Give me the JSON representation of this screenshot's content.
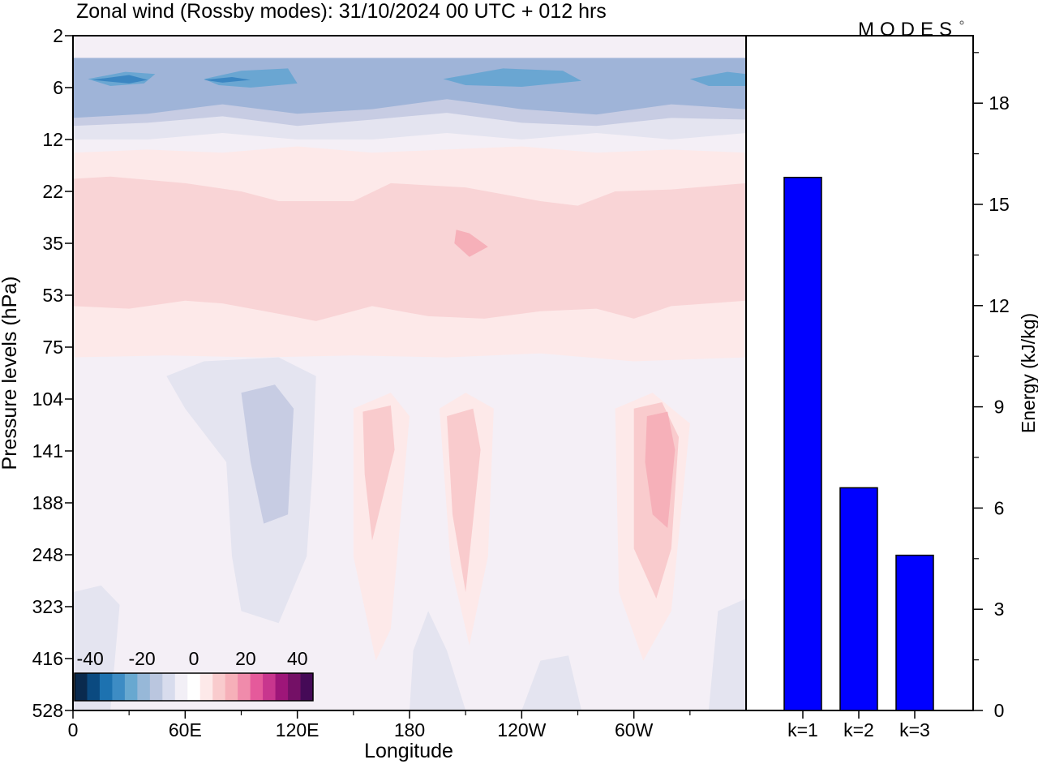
{
  "title": "Zonal wind (Rossby modes):  31/10/2024  00 UTC  + 012 hrs",
  "logo": "MODES",
  "colors": {
    "energy_bar": "#0000ff",
    "bar_stroke": "#000000"
  },
  "chart_data": [
    {
      "type": "heatmap",
      "title": "",
      "xlabel": "Longitude",
      "ylabel": "Pressure levels (hPa)",
      "x_ticks": [
        "0",
        "60E",
        "120E",
        "180",
        "120W",
        "60W"
      ],
      "x_tick_degrees": [
        0,
        60,
        120,
        180,
        240,
        300
      ],
      "xlim": [
        0,
        360
      ],
      "y_levels": [
        "2",
        "6",
        "12",
        "22",
        "35",
        "53",
        "75",
        "104",
        "141",
        "188",
        "248",
        "323",
        "416",
        "528"
      ],
      "colorbar": {
        "labels": [
          "-40",
          "-20",
          "0",
          "20",
          "40"
        ],
        "label_values": [
          -40,
          -20,
          0,
          20,
          40
        ],
        "colors": [
          "#0a2a4e",
          "#0b4a80",
          "#1d72b0",
          "#3d8cc4",
          "#68a8d0",
          "#97b8d8",
          "#bac6df",
          "#d8dced",
          "#f2eff6",
          "#ffffff",
          "#fde9e9",
          "#f9cbcd",
          "#f6b0b9",
          "#f08bab",
          "#e55a9b",
          "#c8368e",
          "#9e1679",
          "#741066",
          "#450a57"
        ]
      },
      "contours": [
        {
          "value": -4,
          "color": "#e4e4f0",
          "lon_p": [
            [
              0,
              6
            ],
            [
              0,
              12
            ],
            [
              40,
              12
            ],
            [
              80,
              11
            ],
            [
              120,
              12
            ],
            [
              160,
              12
            ],
            [
              200,
              11
            ],
            [
              240,
              12
            ],
            [
              280,
              11
            ],
            [
              320,
              12
            ],
            [
              360,
              11
            ],
            [
              360,
              6
            ]
          ]
        },
        {
          "value": -7,
          "color": "#c7cce3",
          "lon_p": [
            [
              0,
              4
            ],
            [
              0,
              10
            ],
            [
              40,
              9.6
            ],
            [
              80,
              8.8
            ],
            [
              120,
              10
            ],
            [
              160,
              9.2
            ],
            [
              200,
              8.4
            ],
            [
              240,
              9.6
            ],
            [
              280,
              10
            ],
            [
              320,
              9
            ],
            [
              360,
              9.2
            ],
            [
              360,
              4
            ]
          ]
        },
        {
          "value": -12,
          "color": "#9fb4d8",
          "lon_p": [
            [
              0,
              3.2
            ],
            [
              0,
              9
            ],
            [
              40,
              8.5
            ],
            [
              80,
              7.5
            ],
            [
              120,
              8.5
            ],
            [
              160,
              8
            ],
            [
              200,
              7
            ],
            [
              240,
              8
            ],
            [
              280,
              8.6
            ],
            [
              320,
              7.5
            ],
            [
              360,
              8
            ],
            [
              360,
              3.2
            ]
          ]
        },
        {
          "value": -20,
          "color": "#6aa6d2",
          "lon_p": [
            [
              8,
              5
            ],
            [
              28,
              4.3
            ],
            [
              44,
              4.5
            ],
            [
              38,
              5.5
            ],
            [
              20,
              5.8
            ]
          ]
        },
        {
          "value": -20,
          "color": "#6aa6d2",
          "lon_p": [
            [
              70,
              5
            ],
            [
              90,
              4.2
            ],
            [
              115,
              4
            ],
            [
              120,
              5.5
            ],
            [
              95,
              6
            ],
            [
              78,
              5.7
            ]
          ]
        },
        {
          "value": -20,
          "color": "#6aa6d2",
          "lon_p": [
            [
              198,
              5
            ],
            [
              230,
              4
            ],
            [
              262,
              4.2
            ],
            [
              272,
              5.2
            ],
            [
              240,
              5.9
            ],
            [
              210,
              5.7
            ]
          ]
        },
        {
          "value": -20,
          "color": "#6aa6d2",
          "lon_p": [
            [
              330,
              5
            ],
            [
              350,
              4.3
            ],
            [
              360,
              4.5
            ],
            [
              360,
              5.8
            ],
            [
              340,
              5.8
            ]
          ]
        },
        {
          "value": -28,
          "color": "#3b86c2",
          "lon_p": [
            [
              10,
              5.1
            ],
            [
              30,
              4.6
            ],
            [
              40,
              5.1
            ],
            [
              30,
              5.5
            ]
          ]
        },
        {
          "value": -28,
          "color": "#3b86c2",
          "lon_p": [
            [
              70,
              5.1
            ],
            [
              85,
              4.8
            ],
            [
              95,
              5.1
            ],
            [
              80,
              5.4
            ]
          ]
        },
        {
          "value": 3,
          "color": "#fde9e9",
          "lon_p": [
            [
              0,
              14
            ],
            [
              40,
              13.5
            ],
            [
              80,
              14
            ],
            [
              120,
              13
            ],
            [
              160,
              14
            ],
            [
              200,
              13.5
            ],
            [
              240,
              13
            ],
            [
              280,
              14
            ],
            [
              320,
              13.5
            ],
            [
              360,
              14
            ],
            [
              360,
              80
            ],
            [
              300,
              82
            ],
            [
              250,
              78
            ],
            [
              200,
              80
            ],
            [
              150,
              79
            ],
            [
              100,
              80
            ],
            [
              50,
              79
            ],
            [
              0,
              80
            ]
          ]
        },
        {
          "value": 6,
          "color": "#f9d4d6",
          "lon_p": [
            [
              0,
              19
            ],
            [
              20,
              18.5
            ],
            [
              60,
              20
            ],
            [
              90,
              22
            ],
            [
              110,
              24
            ],
            [
              150,
              24
            ],
            [
              170,
              20
            ],
            [
              210,
              21
            ],
            [
              250,
              24
            ],
            [
              270,
              25
            ],
            [
              290,
              22
            ],
            [
              320,
              21.5
            ],
            [
              360,
              20
            ],
            [
              360,
              55
            ],
            [
              320,
              57
            ],
            [
              300,
              62
            ],
            [
              280,
              58
            ],
            [
              250,
              59
            ],
            [
              220,
              62
            ],
            [
              190,
              61
            ],
            [
              160,
              57
            ],
            [
              130,
              63
            ],
            [
              110,
              60
            ],
            [
              80,
              56
            ],
            [
              60,
              55
            ],
            [
              30,
              58
            ],
            [
              0,
              57
            ]
          ]
        },
        {
          "value": 12,
          "color": "#f6b0b9",
          "lon_p": [
            [
              205,
              31
            ],
            [
              212,
              32
            ],
            [
              222,
              36
            ],
            [
              212,
              39
            ],
            [
              204,
              35
            ]
          ]
        },
        {
          "value": -4,
          "color": "#e4e4f0",
          "lon_p": [
            [
              50,
              90
            ],
            [
              70,
              82
            ],
            [
              110,
              80
            ],
            [
              130,
              90
            ],
            [
              128,
              160
            ],
            [
              125,
              250
            ],
            [
              110,
              350
            ],
            [
              90,
              330
            ],
            [
              85,
              250
            ],
            [
              82,
              150
            ],
            [
              60,
              110
            ]
          ]
        },
        {
          "value": -7,
          "color": "#c7cce3",
          "lon_p": [
            [
              90,
              100
            ],
            [
              108,
              95
            ],
            [
              118,
              110
            ],
            [
              115,
              200
            ],
            [
              102,
              210
            ],
            [
              95,
              150
            ]
          ]
        },
        {
          "value": -4,
          "color": "#e4e4f0",
          "lon_p": [
            [
              0,
              300
            ],
            [
              15,
              290
            ],
            [
              25,
              320
            ],
            [
              20,
              528
            ],
            [
              0,
              528
            ]
          ]
        },
        {
          "value": -4,
          "color": "#e4e4f0",
          "lon_p": [
            [
              180,
              528
            ],
            [
              182,
              400
            ],
            [
              190,
              330
            ],
            [
              200,
              400
            ],
            [
              210,
              528
            ]
          ]
        },
        {
          "value": -4,
          "color": "#e4e4f0",
          "lon_p": [
            [
              240,
              528
            ],
            [
              250,
              420
            ],
            [
              265,
              410
            ],
            [
              272,
              528
            ]
          ]
        },
        {
          "value": -4,
          "color": "#e4e4f0",
          "lon_p": [
            [
              340,
              528
            ],
            [
              345,
              330
            ],
            [
              360,
              310
            ],
            [
              360,
              528
            ]
          ]
        },
        {
          "value": 3,
          "color": "#fde9e9",
          "lon_p": [
            [
              150,
              110
            ],
            [
              170,
              100
            ],
            [
              180,
              115
            ],
            [
              170,
              360
            ],
            [
              162,
              420
            ],
            [
              150,
              250
            ]
          ]
        },
        {
          "value": 3,
          "color": "#fde9e9",
          "lon_p": [
            [
              196,
              110
            ],
            [
              210,
              100
            ],
            [
              225,
              110
            ],
            [
              222,
              250
            ],
            [
              212,
              390
            ],
            [
              202,
              260
            ]
          ]
        },
        {
          "value": 3,
          "color": "#fde9e9",
          "lon_p": [
            [
              290,
              110
            ],
            [
              310,
              100
            ],
            [
              330,
              120
            ],
            [
              320,
              330
            ],
            [
              305,
              420
            ],
            [
              292,
              300
            ]
          ]
        },
        {
          "value": 8,
          "color": "#f9cbcd",
          "lon_p": [
            [
              155,
              112
            ],
            [
              170,
              108
            ],
            [
              172,
              140
            ],
            [
              160,
              230
            ],
            [
              156,
              160
            ]
          ]
        },
        {
          "value": 8,
          "color": "#f9cbcd",
          "lon_p": [
            [
              200,
              115
            ],
            [
              214,
              110
            ],
            [
              218,
              140
            ],
            [
              210,
              300
            ],
            [
              203,
              200
            ]
          ]
        },
        {
          "value": 8,
          "color": "#f9cbcd",
          "lon_p": [
            [
              300,
              110
            ],
            [
              315,
              106
            ],
            [
              324,
              130
            ],
            [
              320,
              240
            ],
            [
              312,
              310
            ],
            [
              300,
              240
            ]
          ]
        },
        {
          "value": 12,
          "color": "#f6b0b9",
          "lon_p": [
            [
              307,
              115
            ],
            [
              318,
              112
            ],
            [
              322,
              140
            ],
            [
              318,
              215
            ],
            [
              310,
              200
            ],
            [
              306,
              150
            ]
          ]
        }
      ]
    },
    {
      "type": "bar",
      "title": "",
      "categories": [
        "k=1",
        "k=2",
        "k=3"
      ],
      "values": [
        15.8,
        6.6,
        4.6
      ],
      "ylabel": "Energy (kJ/kg)",
      "ylim": [
        0,
        20
      ],
      "y_ticks": [
        "0",
        "3",
        "6",
        "9",
        "12",
        "15",
        "18"
      ]
    }
  ]
}
